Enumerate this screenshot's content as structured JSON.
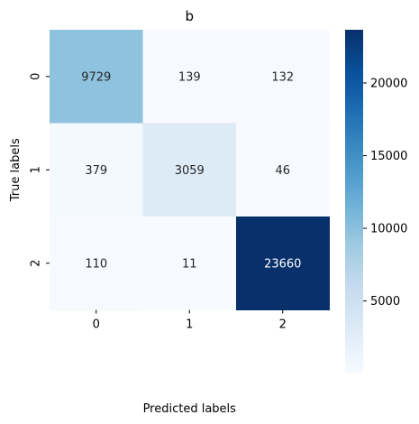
{
  "chart_data": {
    "type": "heatmap",
    "title": "b",
    "xlabel": "Predicted labels",
    "ylabel": "True labels",
    "x_categories": [
      "0",
      "1",
      "2"
    ],
    "y_categories": [
      "0",
      "1",
      "2"
    ],
    "matrix": [
      [
        9729,
        139,
        132
      ],
      [
        379,
        3059,
        46
      ],
      [
        110,
        11,
        23660
      ]
    ],
    "colormap": "Blues",
    "vmin": 11,
    "vmax": 23660,
    "colorbar_ticks": [
      5000,
      10000,
      15000,
      20000
    ],
    "colorbar_tick_labels": [
      "5000",
      "10000",
      "15000",
      "20000"
    ]
  }
}
